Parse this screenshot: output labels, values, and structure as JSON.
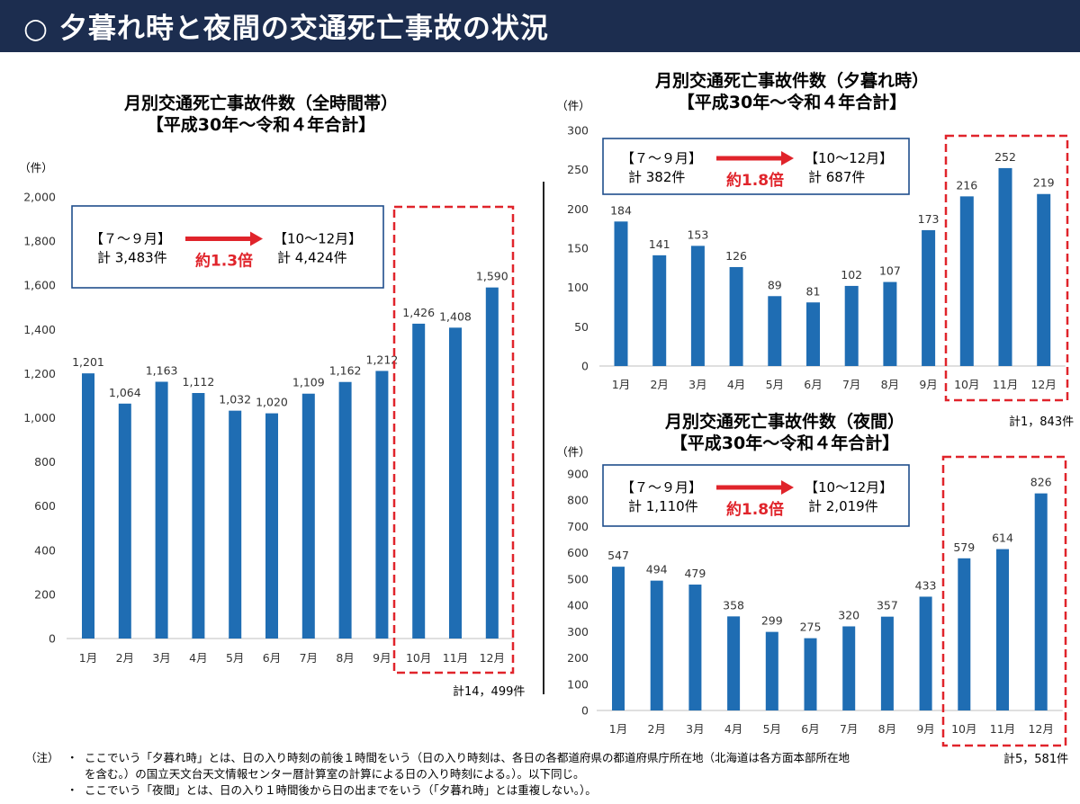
{
  "header": {
    "title": "○ 夕暮れ時と夜間の交通死亡事故の状況"
  },
  "chart_data": [
    {
      "type": "bar",
      "title": "月別交通死亡事故件数（全時間帯）",
      "subtitle": "【平成30年～令和４年合計】",
      "ylabel": "（件）",
      "ylim": [
        0,
        2000
      ],
      "yticks": [
        "0",
        "200",
        "400",
        "600",
        "800",
        "1,000",
        "1,200",
        "1,400",
        "1,600",
        "1,800",
        "2,000"
      ],
      "categories": [
        "1月",
        "2月",
        "3月",
        "4月",
        "5月",
        "6月",
        "7月",
        "8月",
        "9月",
        "10月",
        "11月",
        "12月"
      ],
      "values": [
        1201,
        1064,
        1163,
        1112,
        1032,
        1020,
        1109,
        1162,
        1212,
        1426,
        1408,
        1590
      ],
      "data_labels": [
        "1,201",
        "1,064",
        "1,163",
        "1,112",
        "1,032",
        "1,020",
        "1,109",
        "1,162",
        "1,212",
        "1,426",
        "1,408",
        "1,590"
      ],
      "bar_color": "#1f6db3",
      "grid": false,
      "highlight_color": "#e0242b",
      "highlight_categories": [
        "10月",
        "11月",
        "12月"
      ],
      "total": "計14，499件",
      "comparison": {
        "from_label": "【７～９月】",
        "from_value": "計 3,483件",
        "to_label": "【10～12月】",
        "to_value": "計 4,424件",
        "ratio": "約1.3倍"
      }
    },
    {
      "type": "bar",
      "title": "月別交通死亡事故件数（夕暮れ時）",
      "subtitle": "【平成30年～令和４年合計】",
      "ylabel": "（件）",
      "ylim": [
        0,
        300
      ],
      "yticks": [
        "0",
        "50",
        "100",
        "150",
        "200",
        "250",
        "300"
      ],
      "categories": [
        "1月",
        "2月",
        "3月",
        "4月",
        "5月",
        "6月",
        "7月",
        "8月",
        "9月",
        "10月",
        "11月",
        "12月"
      ],
      "values": [
        184,
        141,
        153,
        126,
        89,
        81,
        102,
        107,
        173,
        216,
        252,
        219
      ],
      "data_labels": [
        "184",
        "141",
        "153",
        "126",
        "89",
        "81",
        "102",
        "107",
        "173",
        "216",
        "252",
        "219"
      ],
      "bar_color": "#1f6db3",
      "grid": false,
      "highlight_color": "#e0242b",
      "highlight_categories": [
        "10月",
        "11月",
        "12月"
      ],
      "total": "計1，843件",
      "comparison": {
        "from_label": "【７～９月】",
        "from_value": "計 382件",
        "to_label": "【10～12月】",
        "to_value": "計 687件",
        "ratio": "約1.8倍"
      }
    },
    {
      "type": "bar",
      "title": "月別交通死亡事故件数（夜間）",
      "subtitle": "【平成30年～令和４年合計】",
      "ylabel": "（件）",
      "ylim": [
        0,
        900
      ],
      "yticks": [
        "0",
        "100",
        "200",
        "300",
        "400",
        "500",
        "600",
        "700",
        "800",
        "900"
      ],
      "categories": [
        "1月",
        "2月",
        "3月",
        "4月",
        "5月",
        "6月",
        "7月",
        "8月",
        "9月",
        "10月",
        "11月",
        "12月"
      ],
      "values": [
        547,
        494,
        479,
        358,
        299,
        275,
        320,
        357,
        433,
        579,
        614,
        826
      ],
      "data_labels": [
        "547",
        "494",
        "479",
        "358",
        "299",
        "275",
        "320",
        "357",
        "433",
        "579",
        "614",
        "826"
      ],
      "bar_color": "#1f6db3",
      "grid": false,
      "highlight_color": "#e0242b",
      "highlight_categories": [
        "10月",
        "11月",
        "12月"
      ],
      "total": "計5，581件",
      "comparison": {
        "from_label": "【７～９月】",
        "from_value": "計 1,110件",
        "to_label": "【10～12月】",
        "to_value": "計 2,019件",
        "ratio": "約1.8倍"
      }
    }
  ],
  "notes": {
    "lead": "（注）",
    "bullet": "・",
    "line1": "ここでいう「夕暮れ時」とは、日の入り時刻の前後１時間をいう（日の入り時刻は、各日の各都道府県の都道府県庁所在地（北海道は各方面本部所在地",
    "line2": "を含む。）の国立天文台天文情報センター暦計算室の計算による日の入り時刻による。）。以下同じ。",
    "line3": "ここでいう「夜間」とは、日の入り１時間後から日の出までをいう（「夕暮れ時」とは重複しない。）。"
  }
}
